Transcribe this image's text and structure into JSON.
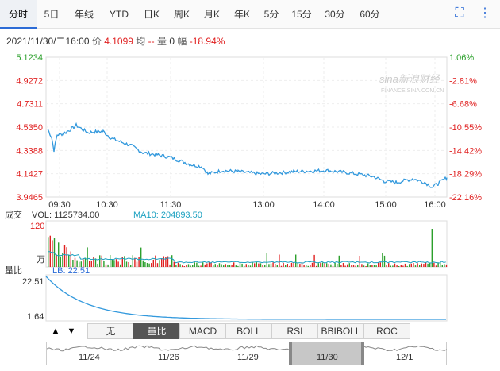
{
  "tabs": [
    "分时",
    "5日",
    "年线",
    "YTD",
    "日K",
    "周K",
    "月K",
    "年K",
    "5分",
    "15分",
    "30分",
    "60分"
  ],
  "active_tab": "分时",
  "controls": {
    "fullscreen_icon": "fullscreen-icon",
    "more_icon": "more-vertical-icon"
  },
  "info": {
    "datetime": "2021/11/30/二16:00",
    "price_label": "价",
    "price_value": "4.1099",
    "avg_label": "均",
    "avg_value": "--",
    "vol_label": "量",
    "vol_value": "0",
    "amp_label": "幅",
    "amp_value": "-18.94%"
  },
  "watermark": "sina新浪财经",
  "watermark_url": "FINANCE.SINA.COM.CN",
  "price_axis": [
    "5.1234",
    "4.9272",
    "4.7311",
    "4.5350",
    "4.3388",
    "4.1427",
    "3.9465"
  ],
  "pct_axis": [
    "1.06%",
    "-2.81%",
    "-6.68%",
    "-10.55%",
    "-14.42%",
    "-18.29%",
    "-22.16%"
  ],
  "time_axis": [
    "09:30",
    "10:30",
    "11:30",
    "13:00",
    "14:00",
    "15:00",
    "16:00"
  ],
  "volume_panel": {
    "title": "成交",
    "vol_text": "VOL: 1125734.00",
    "ma_text": "MA10: 204893.50",
    "top": "120",
    "unit": "万"
  },
  "lb_panel": {
    "title": "量比",
    "lb_text": "LB: 22.51",
    "top": "22.51",
    "bottom": "1.64"
  },
  "indicators": [
    "无",
    "量比",
    "MACD",
    "BOLL",
    "RSI",
    "BBIBOLL",
    "ROC"
  ],
  "active_indicator": "量比",
  "arrows": [
    "▲",
    "▼"
  ],
  "navigator_dates": [
    "11/24",
    "11/26",
    "11/29",
    "11/30",
    "12/1"
  ],
  "colors": {
    "up": "#e02020",
    "down": "#2ca02c",
    "line": "#3399dd",
    "accent": "#2b6bd6"
  },
  "chart_data": {
    "type": "line",
    "x": [
      "09:30",
      "10:00",
      "10:30",
      "11:00",
      "11:30",
      "13:00",
      "13:30",
      "14:00",
      "14:30",
      "15:00",
      "15:30",
      "16:00"
    ],
    "series": [
      {
        "values": [
          4.5,
          4.45,
          4.52,
          4.3,
          4.28,
          4.14,
          4.16,
          4.17,
          4.16,
          4.05,
          4.08,
          4.11
        ]
      }
    ],
    "ylim": [
      3.9465,
      5.1234
    ]
  }
}
